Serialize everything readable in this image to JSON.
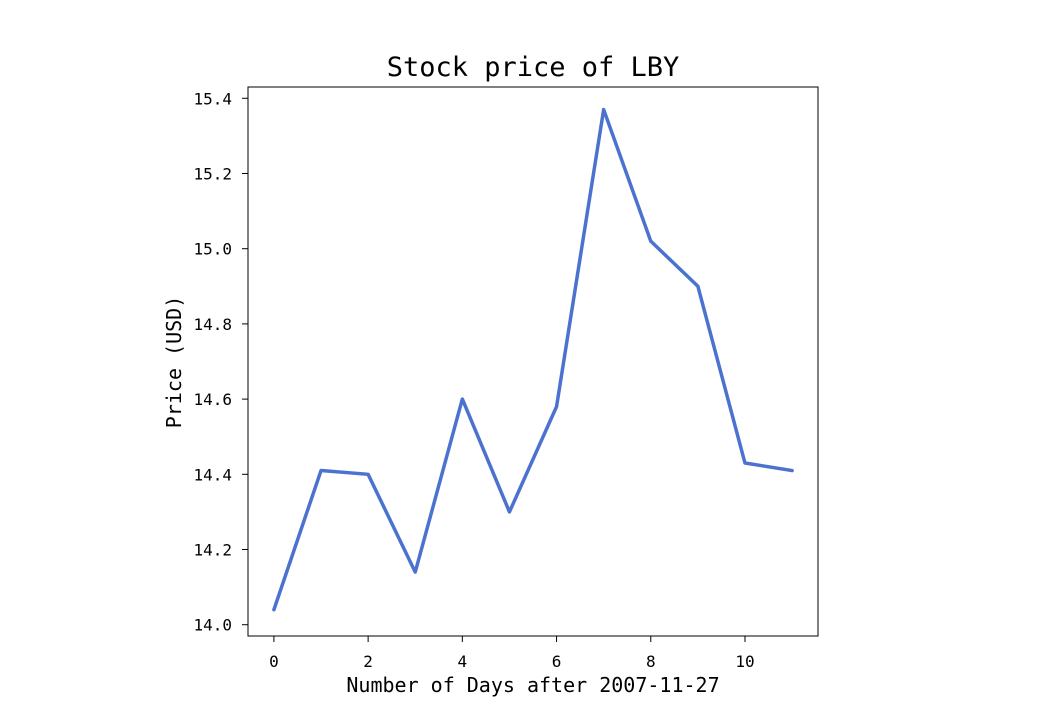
{
  "chart_data": {
    "type": "line",
    "title": "Stock price of LBY",
    "xlabel": "Number of Days after 2007-11-27",
    "ylabel": "Price (USD)",
    "x": [
      0,
      1,
      2,
      3,
      4,
      5,
      6,
      7,
      8,
      9,
      10,
      11
    ],
    "series": [
      {
        "values": [
          14.04,
          14.41,
          14.4,
          14.14,
          14.6,
          14.3,
          14.58,
          15.37,
          15.02,
          14.9,
          14.43,
          14.41
        ]
      }
    ],
    "xlim": [
      -0.55,
      11.55
    ],
    "ylim": [
      13.97,
      15.43
    ],
    "x_ticks": [
      "0",
      "2",
      "4",
      "6",
      "8",
      "10"
    ],
    "y_ticks": [
      "14.0",
      "14.2",
      "14.4",
      "14.6",
      "14.8",
      "15.0",
      "15.2",
      "15.4"
    ],
    "grid": false,
    "colors": {
      "line": "#4c72d0"
    }
  }
}
